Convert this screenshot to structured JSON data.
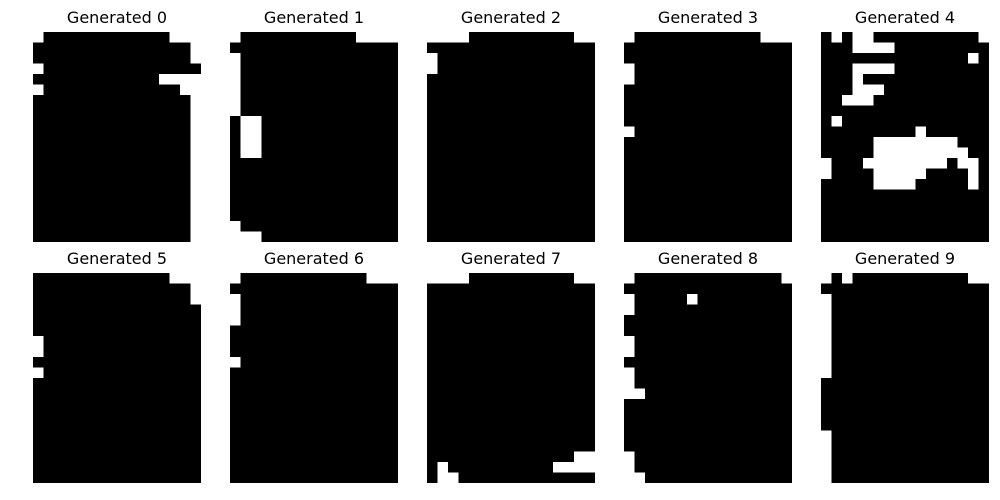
{
  "colors": {
    "background": "#ffffff",
    "on": "#000000",
    "off": "#ffffff"
  },
  "grid": {
    "cols": 16,
    "rows": 20
  },
  "panels": [
    {
      "title": "Generated 0",
      "white": [
        [
          0,
          0
        ],
        [
          13,
          0
        ],
        [
          14,
          0
        ],
        [
          15,
          0
        ],
        [
          15,
          1
        ],
        [
          15,
          2
        ],
        [
          0,
          3
        ],
        [
          0,
          5
        ],
        [
          12,
          4
        ],
        [
          13,
          4
        ],
        [
          14,
          4
        ],
        [
          15,
          4
        ],
        [
          14,
          5
        ],
        [
          15,
          5
        ],
        [
          15,
          6
        ],
        [
          15,
          7
        ],
        [
          15,
          8
        ],
        [
          15,
          9
        ],
        [
          15,
          10
        ],
        [
          15,
          11
        ],
        [
          15,
          12
        ],
        [
          15,
          13
        ],
        [
          15,
          14
        ],
        [
          15,
          15
        ],
        [
          15,
          16
        ],
        [
          15,
          17
        ],
        [
          15,
          18
        ],
        [
          15,
          19
        ]
      ]
    },
    {
      "title": "Generated 1",
      "white": [
        [
          0,
          0
        ],
        [
          12,
          0
        ],
        [
          13,
          0
        ],
        [
          14,
          0
        ],
        [
          15,
          0
        ],
        [
          0,
          2
        ],
        [
          0,
          3
        ],
        [
          0,
          4
        ],
        [
          0,
          5
        ],
        [
          0,
          6
        ],
        [
          0,
          7
        ],
        [
          1,
          8
        ],
        [
          1,
          9
        ],
        [
          1,
          10
        ],
        [
          1,
          11
        ],
        [
          2,
          8
        ],
        [
          2,
          9
        ],
        [
          2,
          10
        ],
        [
          2,
          11
        ],
        [
          0,
          18
        ],
        [
          0,
          19
        ],
        [
          1,
          19
        ],
        [
          2,
          19
        ]
      ]
    },
    {
      "title": "Generated 2",
      "white": [
        [
          0,
          0
        ],
        [
          1,
          0
        ],
        [
          2,
          0
        ],
        [
          3,
          0
        ],
        [
          14,
          0
        ],
        [
          15,
          0
        ],
        [
          0,
          2
        ],
        [
          0,
          3
        ]
      ]
    },
    {
      "title": "Generated 3",
      "white": [
        [
          0,
          0
        ],
        [
          13,
          0
        ],
        [
          14,
          0
        ],
        [
          15,
          0
        ],
        [
          0,
          3
        ],
        [
          0,
          4
        ],
        [
          0,
          9
        ]
      ]
    },
    {
      "title": "Generated 4",
      "white": [
        [
          1,
          0
        ],
        [
          3,
          0
        ],
        [
          4,
          0
        ],
        [
          15,
          0
        ],
        [
          3,
          1
        ],
        [
          4,
          1
        ],
        [
          5,
          1
        ],
        [
          6,
          1
        ],
        [
          14,
          2
        ],
        [
          3,
          3
        ],
        [
          4,
          3
        ],
        [
          5,
          3
        ],
        [
          6,
          3
        ],
        [
          3,
          4
        ],
        [
          3,
          5
        ],
        [
          4,
          5
        ],
        [
          5,
          5
        ],
        [
          2,
          6
        ],
        [
          3,
          6
        ],
        [
          4,
          6
        ],
        [
          1,
          8
        ],
        [
          0,
          12
        ],
        [
          0,
          13
        ],
        [
          9,
          9
        ],
        [
          5,
          10
        ],
        [
          6,
          10
        ],
        [
          7,
          10
        ],
        [
          8,
          10
        ],
        [
          9,
          10
        ],
        [
          10,
          10
        ],
        [
          11,
          10
        ],
        [
          12,
          10
        ],
        [
          5,
          11
        ],
        [
          6,
          11
        ],
        [
          7,
          11
        ],
        [
          8,
          11
        ],
        [
          9,
          11
        ],
        [
          10,
          11
        ],
        [
          11,
          11
        ],
        [
          12,
          11
        ],
        [
          13,
          11
        ],
        [
          4,
          12
        ],
        [
          5,
          12
        ],
        [
          6,
          12
        ],
        [
          7,
          12
        ],
        [
          8,
          12
        ],
        [
          9,
          12
        ],
        [
          10,
          12
        ],
        [
          11,
          12
        ],
        [
          13,
          12
        ],
        [
          14,
          12
        ],
        [
          5,
          13
        ],
        [
          6,
          13
        ],
        [
          7,
          13
        ],
        [
          8,
          13
        ],
        [
          9,
          13
        ],
        [
          14,
          13
        ],
        [
          5,
          14
        ],
        [
          6,
          14
        ],
        [
          7,
          14
        ],
        [
          8,
          14
        ],
        [
          14,
          14
        ]
      ]
    },
    {
      "title": "Generated 5",
      "white": [
        [
          13,
          0
        ],
        [
          14,
          0
        ],
        [
          15,
          0
        ],
        [
          15,
          1
        ],
        [
          15,
          2
        ],
        [
          0,
          6
        ],
        [
          0,
          7
        ],
        [
          0,
          9
        ]
      ]
    },
    {
      "title": "Generated 6",
      "white": [
        [
          0,
          0
        ],
        [
          13,
          0
        ],
        [
          14,
          0
        ],
        [
          15,
          0
        ],
        [
          0,
          2
        ],
        [
          0,
          3
        ],
        [
          0,
          4
        ],
        [
          0,
          8
        ]
      ]
    },
    {
      "title": "Generated 7",
      "white": [
        [
          0,
          0
        ],
        [
          1,
          0
        ],
        [
          2,
          0
        ],
        [
          3,
          0
        ],
        [
          14,
          0
        ],
        [
          15,
          0
        ],
        [
          14,
          17
        ],
        [
          15,
          17
        ],
        [
          12,
          18
        ],
        [
          13,
          18
        ],
        [
          14,
          18
        ],
        [
          15,
          18
        ],
        [
          1,
          18
        ],
        [
          1,
          19
        ],
        [
          2,
          19
        ]
      ]
    },
    {
      "title": "Generated 8",
      "white": [
        [
          0,
          0
        ],
        [
          15,
          0
        ],
        [
          0,
          2
        ],
        [
          0,
          3
        ],
        [
          6,
          2
        ],
        [
          0,
          6
        ],
        [
          0,
          7
        ],
        [
          0,
          9
        ],
        [
          0,
          10
        ],
        [
          0,
          11
        ],
        [
          1,
          11
        ],
        [
          0,
          17
        ],
        [
          0,
          18
        ],
        [
          0,
          19
        ],
        [
          1,
          19
        ]
      ]
    },
    {
      "title": "Generated 9",
      "white": [
        [
          0,
          0
        ],
        [
          2,
          0
        ],
        [
          14,
          0
        ],
        [
          15,
          0
        ],
        [
          0,
          2
        ],
        [
          0,
          3
        ],
        [
          0,
          4
        ],
        [
          0,
          5
        ],
        [
          0,
          6
        ],
        [
          0,
          7
        ],
        [
          0,
          8
        ],
        [
          0,
          9
        ],
        [
          0,
          15
        ],
        [
          0,
          16
        ],
        [
          0,
          17
        ],
        [
          0,
          18
        ],
        [
          0,
          19
        ]
      ]
    }
  ]
}
